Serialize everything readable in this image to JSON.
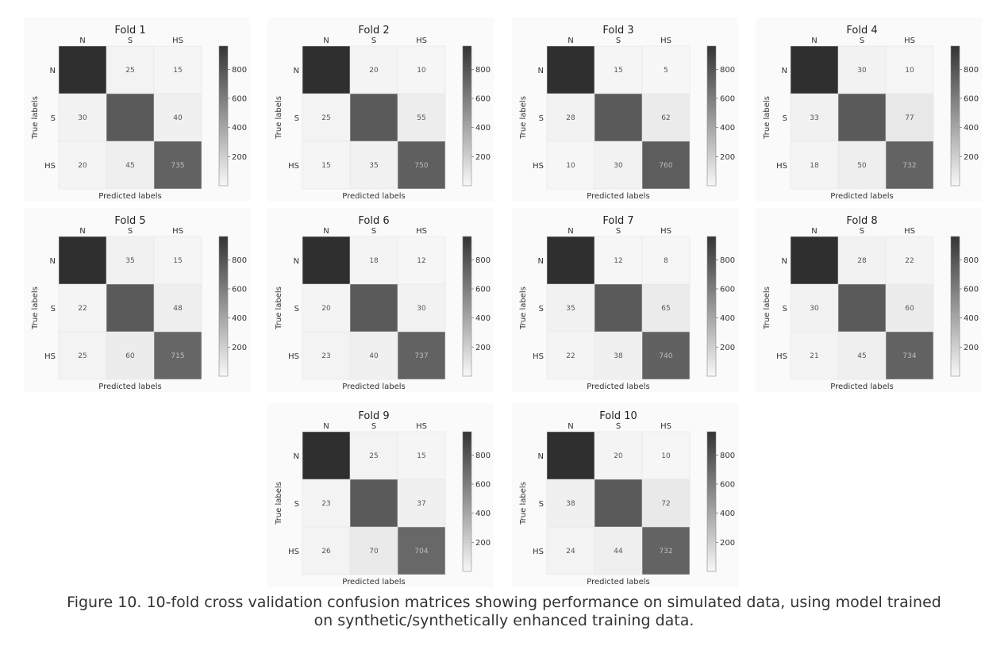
{
  "figure": {
    "caption_line1": "Figure 10. 10-fold cross validation confusion matrices showing performance on simulated data, using model trained",
    "caption_line2": "on synthetic/synthetically enhanced training data."
  },
  "chart_data": [
    {
      "type": "heatmap",
      "title": "Fold 1",
      "categories": [
        "N",
        "S",
        "HS"
      ],
      "xlabel": "Predicted labels",
      "ylabel": "True labels",
      "values": [
        [
          null,
          25,
          15
        ],
        [
          30,
          null,
          40
        ],
        [
          20,
          45,
          735
        ]
      ],
      "colorbar": {
        "ticks": [
          200,
          400,
          600,
          800
        ],
        "range": [
          0,
          960
        ]
      }
    },
    {
      "type": "heatmap",
      "title": "Fold 2",
      "categories": [
        "N",
        "S",
        "HS"
      ],
      "xlabel": "Predicted labels",
      "ylabel": "True labels",
      "values": [
        [
          null,
          20,
          10
        ],
        [
          25,
          null,
          55
        ],
        [
          15,
          35,
          750
        ]
      ],
      "colorbar": {
        "ticks": [
          200,
          400,
          600,
          800
        ],
        "range": [
          0,
          960
        ]
      }
    },
    {
      "type": "heatmap",
      "title": "Fold 3",
      "categories": [
        "N",
        "S",
        "HS"
      ],
      "xlabel": "Predicted labels",
      "ylabel": "True labels",
      "values": [
        [
          null,
          15,
          5
        ],
        [
          28,
          null,
          62
        ],
        [
          10,
          30,
          760
        ]
      ],
      "colorbar": {
        "ticks": [
          200,
          400,
          600,
          800
        ],
        "range": [
          0,
          960
        ]
      }
    },
    {
      "type": "heatmap",
      "title": "Fold 4",
      "categories": [
        "N",
        "S",
        "HS"
      ],
      "xlabel": "Predicted labels",
      "ylabel": "True labels",
      "values": [
        [
          null,
          30,
          10
        ],
        [
          33,
          null,
          77
        ],
        [
          18,
          50,
          732
        ]
      ],
      "colorbar": {
        "ticks": [
          200,
          400,
          600,
          800
        ],
        "range": [
          0,
          960
        ]
      }
    },
    {
      "type": "heatmap",
      "title": "Fold 5",
      "categories": [
        "N",
        "S",
        "HS"
      ],
      "xlabel": "Predicted labels",
      "ylabel": "True labels",
      "values": [
        [
          null,
          35,
          15
        ],
        [
          22,
          null,
          48
        ],
        [
          25,
          60,
          715
        ]
      ],
      "colorbar": {
        "ticks": [
          200,
          400,
          600,
          800
        ],
        "range": [
          0,
          960
        ]
      }
    },
    {
      "type": "heatmap",
      "title": "Fold 6",
      "categories": [
        "N",
        "S",
        "HS"
      ],
      "xlabel": "Predicted labels",
      "ylabel": "True labels",
      "values": [
        [
          null,
          18,
          12
        ],
        [
          20,
          null,
          30
        ],
        [
          23,
          40,
          737
        ]
      ],
      "colorbar": {
        "ticks": [
          200,
          400,
          600,
          800
        ],
        "range": [
          0,
          960
        ]
      }
    },
    {
      "type": "heatmap",
      "title": "Fold 7",
      "categories": [
        "N",
        "S",
        "HS"
      ],
      "xlabel": "Predicted labels",
      "ylabel": "True labels",
      "values": [
        [
          null,
          12,
          8
        ],
        [
          35,
          null,
          65
        ],
        [
          22,
          38,
          740
        ]
      ],
      "colorbar": {
        "ticks": [
          200,
          400,
          600,
          800
        ],
        "range": [
          0,
          960
        ]
      }
    },
    {
      "type": "heatmap",
      "title": "Fold 8",
      "categories": [
        "N",
        "S",
        "HS"
      ],
      "xlabel": "Predicted labels",
      "ylabel": "True labels",
      "values": [
        [
          null,
          28,
          22
        ],
        [
          30,
          null,
          60
        ],
        [
          21,
          45,
          734
        ]
      ],
      "colorbar": {
        "ticks": [
          200,
          400,
          600,
          800
        ],
        "range": [
          0,
          960
        ]
      }
    },
    {
      "type": "heatmap",
      "title": "Fold 9",
      "categories": [
        "N",
        "S",
        "HS"
      ],
      "xlabel": "Predicted labels",
      "ylabel": "True labels",
      "values": [
        [
          null,
          25,
          15
        ],
        [
          23,
          null,
          37
        ],
        [
          26,
          70,
          704
        ]
      ],
      "colorbar": {
        "ticks": [
          200,
          400,
          600,
          800
        ],
        "range": [
          0,
          960
        ]
      }
    },
    {
      "type": "heatmap",
      "title": "Fold 10",
      "categories": [
        "N",
        "S",
        "HS"
      ],
      "xlabel": "Predicted labels",
      "ylabel": "True labels",
      "values": [
        [
          null,
          20,
          10
        ],
        [
          38,
          null,
          72
        ],
        [
          24,
          44,
          732
        ]
      ],
      "colorbar": {
        "ticks": [
          200,
          400,
          600,
          800
        ],
        "range": [
          0,
          960
        ]
      }
    }
  ]
}
